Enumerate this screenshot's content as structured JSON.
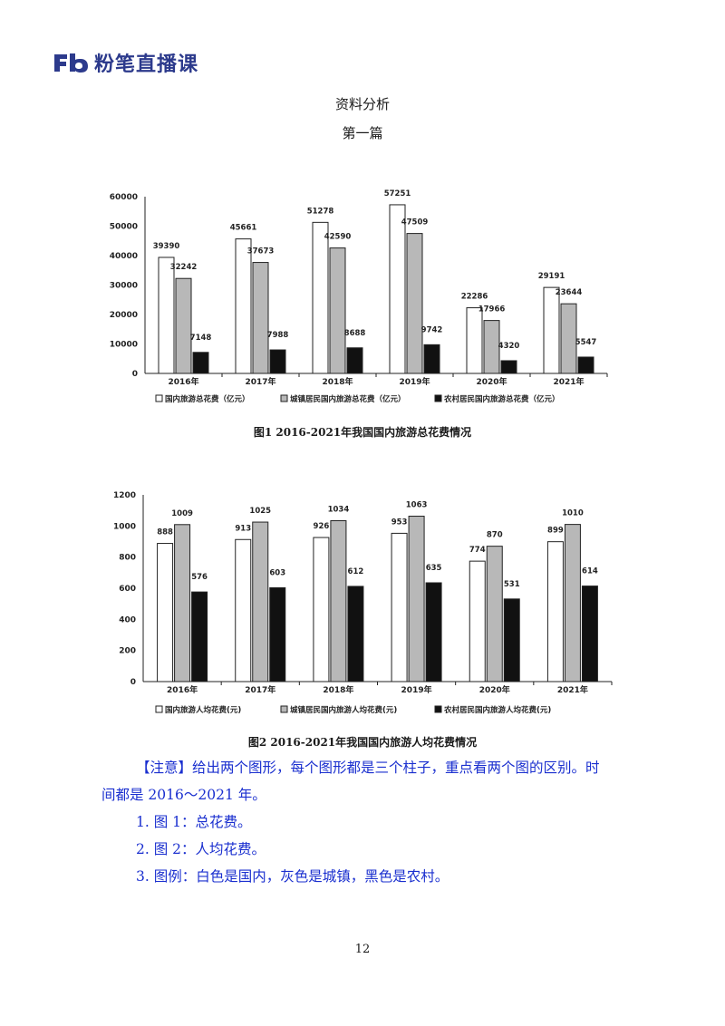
{
  "brand": {
    "name": "粉笔直播课",
    "logo_text": "Fb",
    "color": "#2c3a8c"
  },
  "header": {
    "title": "资料分析",
    "subtitle": "第一篇"
  },
  "chart_data": [
    {
      "type": "bar",
      "caption": "图1   2016-2021年我国国内旅游总花费情况",
      "categories": [
        "2016年",
        "2017年",
        "2018年",
        "2019年",
        "2020年",
        "2021年"
      ],
      "series": [
        {
          "name": "国内旅游总花费（亿元）",
          "values": [
            39390,
            45661,
            51278,
            57251,
            22286,
            29191
          ],
          "fill": "#ffffff"
        },
        {
          "name": "城镇居民国内旅游总花费（亿元）",
          "values": [
            32242,
            37673,
            42590,
            47509,
            17966,
            23644
          ],
          "fill": "#b8b8b8"
        },
        {
          "name": "农村居民国内旅游总花费（亿元）",
          "values": [
            7148,
            7988,
            8688,
            9742,
            4320,
            5547
          ],
          "fill": "#111111"
        }
      ],
      "ylim": [
        0,
        60000
      ],
      "yticks": [
        0,
        10000,
        20000,
        30000,
        40000,
        50000,
        60000
      ],
      "grid": false,
      "legend": "bottom"
    },
    {
      "type": "bar",
      "caption": "图2   2016-2021年我国国内旅游人均花费情况",
      "categories": [
        "2016年",
        "2017年",
        "2018年",
        "2019年",
        "2020年",
        "2021年"
      ],
      "series": [
        {
          "name": "国内旅游人均花费(元)",
          "values": [
            888,
            913,
            926,
            953,
            774,
            899
          ],
          "fill": "#ffffff"
        },
        {
          "name": "城镇居民国内旅游人均花费(元)",
          "values": [
            1009,
            1025,
            1034,
            1063,
            870,
            1010
          ],
          "fill": "#b8b8b8"
        },
        {
          "name": "农村居民国内旅游人均花费(元)",
          "values": [
            576,
            603,
            612,
            635,
            531,
            614
          ],
          "fill": "#111111"
        }
      ],
      "ylim": [
        0,
        1200
      ],
      "yticks": [
        0,
        200,
        400,
        600,
        800,
        1000,
        1200
      ],
      "grid": false,
      "legend": "bottom"
    }
  ],
  "note": {
    "line1": "【注意】给出两个图形，每个图形都是三个柱子，重点看两个图的区别。时",
    "line2": "间都是 2016～2021 年。",
    "item1": "1. 图 1：总花费。",
    "item2": "2. 图 2：人均花费。",
    "item3": "3. 图例：白色是国内，灰色是城镇，黑色是农村。"
  },
  "page_number": "12"
}
